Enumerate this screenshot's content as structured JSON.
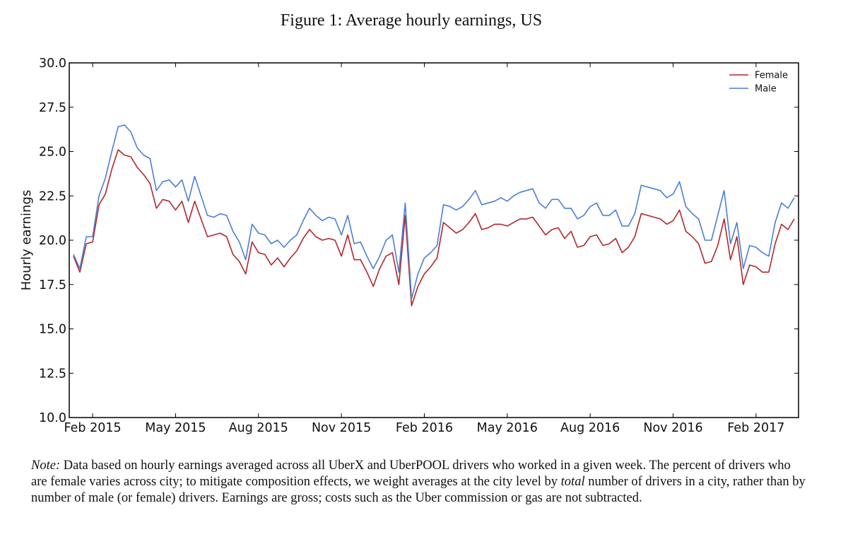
{
  "figure": {
    "title": "Figure 1: Average hourly earnings, US"
  },
  "chart_data": {
    "type": "line",
    "title": "Figure 1: Average hourly earnings, US",
    "xlabel": "",
    "ylabel": "Hourly earnings",
    "ylim": [
      10.0,
      30.0
    ],
    "yticks": [
      "10.0",
      "12.5",
      "15.0",
      "17.5",
      "20.0",
      "22.5",
      "25.0",
      "27.5",
      "30.0"
    ],
    "xticks": [
      "Feb 2015",
      "May 2015",
      "Aug 2015",
      "Nov 2015",
      "Feb 2016",
      "May 2016",
      "Aug 2016",
      "Nov 2016",
      "Feb 2017"
    ],
    "xtick_positions_weeks": [
      3,
      16,
      29,
      42,
      55,
      68,
      81,
      94,
      107
    ],
    "x_unit": "week index (weekly observations starting Jan 2015)",
    "legend": {
      "position": "top-right",
      "entries": [
        "Female",
        "Male"
      ]
    },
    "colors": {
      "Female": "#b2262e",
      "Male": "#4a7fd6"
    },
    "series": [
      {
        "name": "Female",
        "color": "#b2262e",
        "values": [
          19.1,
          18.2,
          19.8,
          19.9,
          22.0,
          22.6,
          24.0,
          25.1,
          24.8,
          24.7,
          24.1,
          23.7,
          23.2,
          21.8,
          22.3,
          22.2,
          21.7,
          22.2,
          21.0,
          22.2,
          21.2,
          20.2,
          20.3,
          20.4,
          20.2,
          19.2,
          18.8,
          18.1,
          19.9,
          19.3,
          19.2,
          18.6,
          19.0,
          18.5,
          19.0,
          19.4,
          20.1,
          20.6,
          20.2,
          20.0,
          20.1,
          20.0,
          19.1,
          20.3,
          18.9,
          18.9,
          18.2,
          17.4,
          18.4,
          19.1,
          19.3,
          17.5,
          21.4,
          16.3,
          17.4,
          18.1,
          18.5,
          19.0,
          21.0,
          20.7,
          20.4,
          20.6,
          21.0,
          21.5,
          20.6,
          20.7,
          20.9,
          20.9,
          20.8,
          21.0,
          21.2,
          21.2,
          21.3,
          20.8,
          20.3,
          20.6,
          20.7,
          20.1,
          20.5,
          19.6,
          19.7,
          20.2,
          20.3,
          19.7,
          19.8,
          20.1,
          19.3,
          19.6,
          20.2,
          21.5,
          21.4,
          21.3,
          21.2,
          20.9,
          21.1,
          21.7,
          20.5,
          20.2,
          19.8,
          18.7,
          18.8,
          19.7,
          21.2,
          18.9,
          20.2,
          17.5,
          18.6,
          18.5,
          18.2,
          18.2,
          19.8,
          20.9,
          20.6,
          21.2
        ]
      },
      {
        "name": "Male",
        "color": "#4a7fd6",
        "values": [
          19.2,
          18.4,
          20.2,
          20.2,
          22.5,
          23.5,
          25.0,
          26.4,
          26.5,
          26.1,
          25.2,
          24.8,
          24.6,
          22.8,
          23.3,
          23.4,
          23.0,
          23.4,
          22.2,
          23.6,
          22.5,
          21.4,
          21.3,
          21.5,
          21.4,
          20.5,
          19.9,
          18.9,
          20.9,
          20.4,
          20.3,
          19.8,
          20.0,
          19.6,
          20.0,
          20.3,
          21.1,
          21.8,
          21.4,
          21.1,
          21.3,
          21.2,
          20.3,
          21.4,
          19.8,
          19.9,
          19.1,
          18.4,
          19.1,
          20.0,
          20.3,
          18.2,
          22.1,
          16.7,
          18.1,
          19.0,
          19.3,
          19.7,
          22.0,
          21.9,
          21.7,
          21.9,
          22.3,
          22.8,
          22.0,
          22.1,
          22.2,
          22.4,
          22.2,
          22.5,
          22.7,
          22.8,
          22.9,
          22.1,
          21.8,
          22.3,
          22.3,
          21.8,
          21.8,
          21.2,
          21.4,
          21.9,
          22.1,
          21.4,
          21.4,
          21.7,
          20.8,
          20.8,
          21.5,
          23.1,
          23.0,
          22.9,
          22.8,
          22.4,
          22.6,
          23.3,
          21.9,
          21.5,
          21.2,
          20.0,
          20.0,
          21.4,
          22.8,
          19.8,
          21.0,
          18.4,
          19.7,
          19.6,
          19.3,
          19.1,
          21.0,
          22.1,
          21.8,
          22.4
        ]
      }
    ]
  },
  "note": {
    "label": "Note:",
    "text_part1": "Data based on hourly earnings averaged across all UberX and UberPOOL drivers who worked in a given week. The percent of drivers who are female varies across city; to mitigate composition effects, we weight averages at the city level by ",
    "emphasis": "total",
    "text_part2": " number of drivers in a city, rather than by number of male (or female) drivers. Earnings are gross; costs such as the Uber commission or gas are not subtracted."
  }
}
